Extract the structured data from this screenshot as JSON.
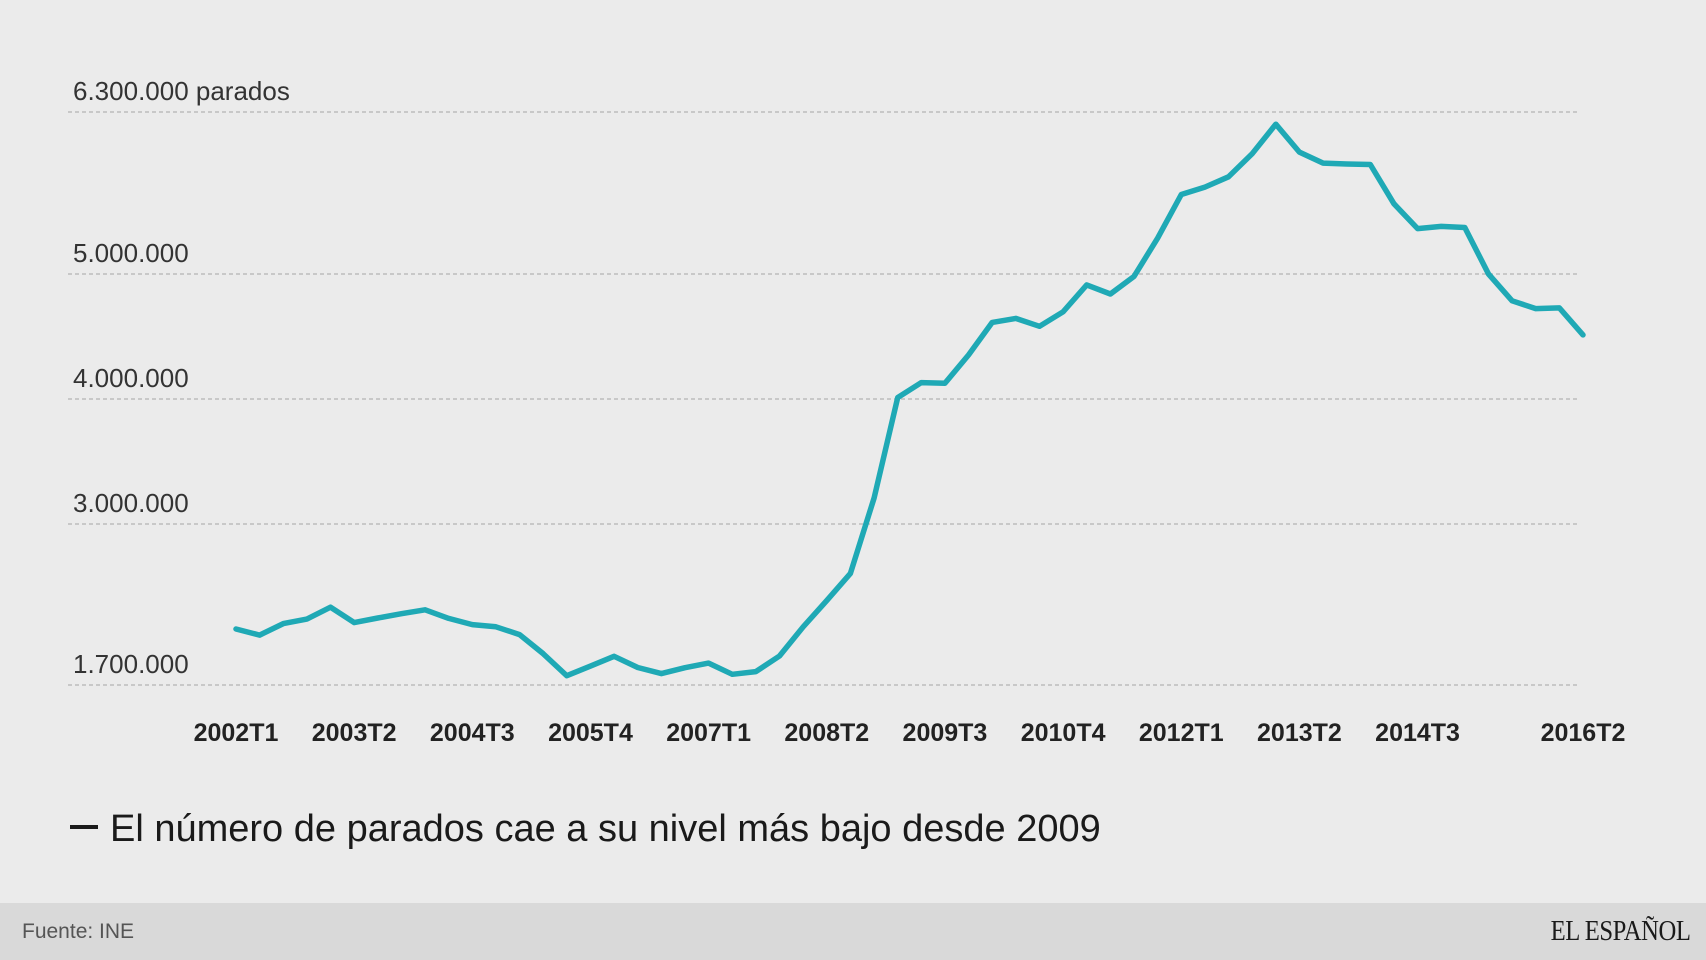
{
  "chart_data": {
    "type": "line",
    "title": "",
    "xlabel": "",
    "ylabel": "",
    "y_unit_label": "parados",
    "grid": true,
    "color": "#1fa9b5",
    "gridline_values": [
      1700000,
      3000000,
      4000000,
      5000000,
      6300000
    ],
    "y_tick_labels": [
      "1.700.000",
      "3.000.000",
      "4.000.000",
      "5.000.000",
      "6.300.000 parados"
    ],
    "x_tick_labels": [
      {
        "label": "2002T1",
        "index": 0
      },
      {
        "label": "2003T2",
        "index": 5
      },
      {
        "label": "2004T3",
        "index": 10
      },
      {
        "label": "2005T4",
        "index": 15
      },
      {
        "label": "2007T1",
        "index": 20
      },
      {
        "label": "2008T2",
        "index": 25
      },
      {
        "label": "2009T3",
        "index": 30
      },
      {
        "label": "2010T4",
        "index": 35
      },
      {
        "label": "2012T1",
        "index": 40
      },
      {
        "label": "2013T2",
        "index": 45
      },
      {
        "label": "2014T3",
        "index": 50
      },
      {
        "label": "2016T2",
        "index": 57
      }
    ],
    "series": [
      {
        "name": "El número de parados cae a su nivel más bajo desde 2009",
        "x": [
          "2002T1",
          "2002T2",
          "2002T3",
          "2002T4",
          "2003T1",
          "2003T2",
          "2003T3",
          "2003T4",
          "2004T1",
          "2004T2",
          "2004T3",
          "2004T4",
          "2005T1",
          "2005T2",
          "2005T3",
          "2005T4",
          "2006T1",
          "2006T2",
          "2006T3",
          "2006T4",
          "2007T1",
          "2007T2",
          "2007T3",
          "2007T4",
          "2008T1",
          "2008T2",
          "2008T3",
          "2008T4",
          "2009T1",
          "2009T2",
          "2009T3",
          "2009T4",
          "2010T1",
          "2010T2",
          "2010T3",
          "2010T4",
          "2011T1",
          "2011T2",
          "2011T3",
          "2011T4",
          "2012T1",
          "2012T2",
          "2012T3",
          "2012T4",
          "2013T1",
          "2013T2",
          "2013T3",
          "2013T4",
          "2014T1",
          "2014T2",
          "2014T3",
          "2014T4",
          "2015T1",
          "2015T2",
          "2015T3",
          "2015T4",
          "2016T1",
          "2016T2"
        ],
        "values": [
          2152000,
          2103000,
          2196000,
          2232000,
          2328000,
          2204000,
          2241000,
          2276000,
          2307000,
          2238000,
          2188000,
          2170000,
          2107000,
          1953000,
          1775000,
          1853000,
          1932000,
          1841000,
          1792000,
          1840000,
          1877000,
          1786000,
          1808000,
          1934000,
          2170000,
          2382000,
          2601000,
          3208000,
          4011000,
          4131000,
          4126000,
          4353000,
          4613000,
          4645000,
          4582000,
          4698000,
          4913000,
          4840000,
          4981000,
          5287000,
          5638000,
          5697000,
          5780000,
          5965000,
          6202000,
          5978000,
          5890000,
          5883000,
          5879000,
          5564000,
          5364000,
          5382000,
          5373000,
          5000000,
          4786000,
          4723000,
          4729000,
          4513000
        ]
      }
    ]
  },
  "legend": {
    "label": "El número de parados cae a su nivel más bajo desde 2009"
  },
  "footer": {
    "source": "Fuente: INE",
    "brand": "EL ESPAÑOL"
  }
}
